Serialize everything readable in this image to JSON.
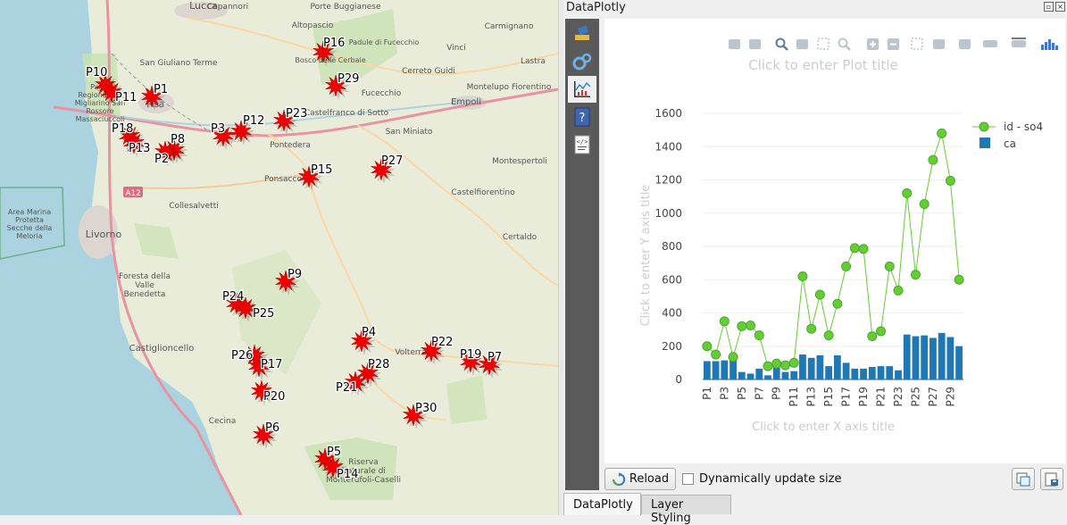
{
  "map": {
    "towns": [
      {
        "name": "Lucca"
      },
      {
        "name": "Capannori"
      },
      {
        "name": "Porte Buggianese"
      },
      {
        "name": "Altopascio"
      },
      {
        "name": "Carmignano"
      },
      {
        "name": "Lastra"
      },
      {
        "name": "Vinci"
      },
      {
        "name": "Cerreto Guidi"
      },
      {
        "name": "Fucecchio"
      },
      {
        "name": "Montelupo Fiorentino"
      },
      {
        "name": "Empoli"
      },
      {
        "name": "San Giuliano Terme"
      },
      {
        "name": "Pisa"
      },
      {
        "name": "Castelfranco di Sotto"
      },
      {
        "name": "Pontedera"
      },
      {
        "name": "San Miniato"
      },
      {
        "name": "Montespertoli"
      },
      {
        "name": "Ponsacco"
      },
      {
        "name": "Castelfiorentino"
      },
      {
        "name": "Collesalvetti"
      },
      {
        "name": "Livorno"
      },
      {
        "name": "Certaldo"
      },
      {
        "name": "Foresta della Valle Benedetta"
      },
      {
        "name": "Area Marina Protetta Secche della Meloria"
      },
      {
        "name": "Castiglioncello"
      },
      {
        "name": "Volterra"
      },
      {
        "name": "Cecina"
      },
      {
        "name": "Riserva Naturale di Monterufoli-Caselli"
      },
      {
        "name": "Parco Regionale di Migliarino San Rossore Massaciuccoli"
      },
      {
        "name": "Padule di Fucecchio"
      },
      {
        "name": "Bosco delle Cerbaie"
      }
    ],
    "road_label": "A12",
    "markers": [
      {
        "label": "P10"
      },
      {
        "label": "P11"
      },
      {
        "label": "P1"
      },
      {
        "label": "P18"
      },
      {
        "label": "P13"
      },
      {
        "label": "P8"
      },
      {
        "label": "P2"
      },
      {
        "label": "P3"
      },
      {
        "label": "P12"
      },
      {
        "label": "P23"
      },
      {
        "label": "P16"
      },
      {
        "label": "P29"
      },
      {
        "label": "P15"
      },
      {
        "label": "P27"
      },
      {
        "label": "P9"
      },
      {
        "label": "P24"
      },
      {
        "label": "P25"
      },
      {
        "label": "P4"
      },
      {
        "label": "P22"
      },
      {
        "label": "P19"
      },
      {
        "label": "P7"
      },
      {
        "label": "P26"
      },
      {
        "label": "P17"
      },
      {
        "label": "P28"
      },
      {
        "label": "P21"
      },
      {
        "label": "P20"
      },
      {
        "label": "P30"
      },
      {
        "label": "P6"
      },
      {
        "label": "P5"
      },
      {
        "label": "P14"
      }
    ]
  },
  "panel": {
    "title": "DataPlotly",
    "reload_label": "Reload",
    "dynamic_label": "Dynamically update size",
    "dynamic_checked": false,
    "tabs": [
      {
        "label": "DataPlotly",
        "active": true
      },
      {
        "label": "Layer Styling",
        "active": false
      }
    ],
    "sidebar_icons": [
      "paint-brush-icon",
      "gears-icon",
      "plot-icon",
      "help-icon",
      "code-icon"
    ]
  },
  "chart_data": {
    "type": "bar",
    "title": "Click to enter Plot title",
    "xlabel": "Click to enter X axis title",
    "ylabel": "Click to enter Y axis title",
    "ylim": [
      0,
      1600
    ],
    "yticks": [
      0,
      200,
      400,
      600,
      800,
      1000,
      1200,
      1400,
      1600
    ],
    "categories": [
      "P1",
      "P2",
      "P3",
      "P4",
      "P5",
      "P6",
      "P7",
      "P8",
      "P9",
      "P10",
      "P11",
      "P12",
      "P13",
      "P14",
      "P15",
      "P16",
      "P17",
      "P18",
      "P19",
      "P20",
      "P21",
      "P22",
      "P23",
      "P24",
      "P25",
      "P26",
      "P27",
      "P28",
      "P29",
      "P30"
    ],
    "xtick_labels": [
      "P1",
      "P3",
      "P5",
      "P7",
      "P9",
      "P11",
      "P13",
      "P15",
      "P17",
      "P19",
      "P21",
      "P23",
      "P25",
      "P27",
      "P29"
    ],
    "grid": true,
    "legend_position": "top-right",
    "series": [
      {
        "name": "id - so4",
        "type": "line",
        "color": "#66cc33",
        "values": [
          200,
          150,
          350,
          135,
          320,
          325,
          265,
          80,
          95,
          85,
          100,
          620,
          305,
          510,
          265,
          455,
          680,
          790,
          785,
          260,
          290,
          680,
          535,
          1120,
          630,
          1055,
          1320,
          1480,
          1195,
          600
        ]
      },
      {
        "name": "ca",
        "type": "bar",
        "color": "#1f77b4",
        "values": [
          110,
          110,
          115,
          115,
          45,
          35,
          65,
          25,
          75,
          45,
          50,
          150,
          130,
          145,
          80,
          145,
          100,
          65,
          65,
          75,
          80,
          80,
          55,
          270,
          260,
          265,
          250,
          280,
          255,
          200
        ]
      }
    ]
  }
}
